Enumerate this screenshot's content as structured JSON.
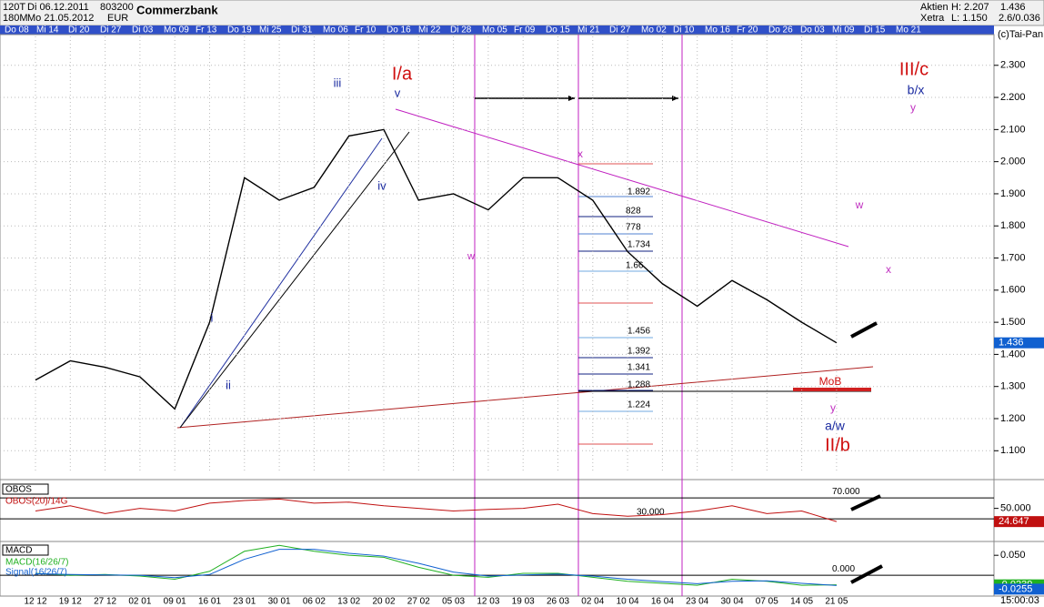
{
  "header": {
    "symbol_code": "120T",
    "start_date": "Di 06.12.2011",
    "code": "803200",
    "period": "180M",
    "end_date": "Mo 21.05.2012",
    "currency": "EUR",
    "name": "Commerzbank",
    "market_type": "Aktien",
    "high": "H: 2.207",
    "last": "1.436",
    "exchange": "Xetra",
    "low": "L: 1.150",
    "change": "2.6/0.036",
    "copyright": "(c)Tai-Pan",
    "time": "15:00:03"
  },
  "date_bar": [
    "Do 08",
    "Mi 14",
    "Di 20",
    "Di 27",
    "Di 03",
    "Mo 09",
    "Fr 13",
    "Do 19",
    "Mi 25",
    "Di 31",
    "Mo 06",
    "Fr 10",
    "Do 16",
    "Mi 22",
    "Di 28",
    "Mo 05",
    "Fr 09",
    "Do 15",
    "Mi 21",
    "Di 27",
    "Mo 02",
    "Di 10",
    "Mo 16",
    "Fr 20",
    "Do 26",
    "Do 03",
    "Mi 09",
    "Di 15",
    "Mo 21"
  ],
  "chart_data": [
    {
      "type": "line",
      "categories": [
        "12 12",
        "19 12",
        "27 12",
        "02 01",
        "09 01",
        "16 01",
        "23 01",
        "30 01",
        "06 02",
        "13 02",
        "20 02",
        "27 02",
        "05 03",
        "12 03",
        "19 03",
        "26 03",
        "02 04",
        "10 04",
        "16 04",
        "23 04",
        "30 04",
        "07 05",
        "14 05",
        "21 05"
      ],
      "values": [
        1.32,
        1.38,
        1.36,
        1.33,
        1.23,
        1.5,
        1.95,
        1.88,
        1.92,
        2.08,
        2.1,
        1.88,
        1.9,
        1.85,
        1.95,
        1.95,
        1.88,
        1.72,
        1.62,
        1.55,
        1.63,
        1.57,
        1.5,
        1.436
      ],
      "color": "#000000",
      "ylim": [
        1.03,
        2.39
      ],
      "yticks": [
        {
          "value": 1.1,
          "label": "1.100"
        },
        {
          "value": 1.2,
          "label": "1.200"
        },
        {
          "value": 1.3,
          "label": "1.300"
        },
        {
          "value": 1.4,
          "label": "1.400"
        },
        {
          "value": 1.5,
          "label": "1.500"
        },
        {
          "value": 1.6,
          "label": "1.600"
        },
        {
          "value": 1.7,
          "label": "1.700"
        },
        {
          "value": 1.8,
          "label": "1.800"
        },
        {
          "value": 1.9,
          "label": "1.900"
        },
        {
          "value": 2.0,
          "label": "2.000"
        },
        {
          "value": 2.1,
          "label": "2.100"
        },
        {
          "value": 2.2,
          "label": "2.200"
        },
        {
          "value": 2.3,
          "label": "2.300"
        }
      ],
      "grid": true,
      "annotations": [
        {
          "text": "I/a",
          "color": "#d01010"
        },
        {
          "text": "iii",
          "color": "#1a2aa0"
        },
        {
          "text": "v",
          "color": "#1a2aa0"
        },
        {
          "text": "iv",
          "color": "#1a2aa0"
        },
        {
          "text": "i",
          "color": "#1a2aa0"
        },
        {
          "text": "ii",
          "color": "#1a2aa0"
        },
        {
          "text": "w",
          "color": "#c030c0"
        },
        {
          "text": "x",
          "color": "#c030c0"
        },
        {
          "text": "III/c",
          "color": "#d01010"
        },
        {
          "text": "b/x",
          "color": "#1a2aa0"
        },
        {
          "text": "y",
          "color": "#c030c0"
        },
        {
          "text": "w",
          "color": "#c030c0"
        },
        {
          "text": "x",
          "color": "#c030c0"
        },
        {
          "text": "MoB",
          "color": "#d01010"
        },
        {
          "text": "y",
          "color": "#c030c0"
        },
        {
          "text": "a/w",
          "color": "#1a2aa0"
        },
        {
          "text": "II/b",
          "color": "#d01010"
        },
        {
          "text": "1.892",
          "color": "#000000"
        },
        {
          "text": "828",
          "color": "#000000"
        },
        {
          "text": "778",
          "color": "#000000"
        },
        {
          "text": "1.734",
          "color": "#000000"
        },
        {
          "text": "1.66",
          "color": "#000000"
        },
        {
          "text": "1.456",
          "color": "#000000"
        },
        {
          "text": "1.392",
          "color": "#000000"
        },
        {
          "text": "1.341",
          "color": "#000000"
        },
        {
          "text": "1.288",
          "color": "#000000"
        },
        {
          "text": "1.224",
          "color": "#000000"
        }
      ]
    },
    {
      "type": "line",
      "panel_label": "OBOS",
      "series": [
        {
          "name": "OBOS(20)/14G",
          "color": "#c01010",
          "values": [
            45,
            55,
            40,
            50,
            45,
            60,
            65,
            68,
            60,
            62,
            55,
            50,
            45,
            48,
            50,
            58,
            40,
            35,
            38,
            45,
            55,
            40,
            45,
            24.647
          ]
        }
      ],
      "ylim": [
        -17,
        100
      ],
      "yticks": [
        {
          "value": 50,
          "label": "50.000"
        }
      ],
      "levels": [
        {
          "value": 70,
          "label": "70.000"
        },
        {
          "value": 30,
          "label": "30.000"
        }
      ]
    },
    {
      "type": "line",
      "panel_label": "MACD",
      "series": [
        {
          "name": "MACD(16/26/7)",
          "color": "#20b020",
          "values": [
            0.005,
            0,
            0.002,
            -0.002,
            -0.01,
            0.01,
            0.06,
            0.075,
            0.06,
            0.05,
            0.045,
            0.02,
            0,
            -0.005,
            0.005,
            0.005,
            -0.005,
            -0.015,
            -0.02,
            -0.025,
            -0.01,
            -0.015,
            -0.025,
            -0.0239
          ]
        },
        {
          "name": "Signal(16/26/7)",
          "color": "#1060d0",
          "values": [
            0.004,
            0.002,
            0.001,
            0,
            -0.006,
            0.002,
            0.04,
            0.065,
            0.065,
            0.055,
            0.048,
            0.03,
            0.008,
            -0.002,
            0.001,
            0.003,
            -0.002,
            -0.01,
            -0.016,
            -0.021,
            -0.015,
            -0.014,
            -0.02,
            -0.0255
          ]
        }
      ],
      "ylim": [
        -0.052,
        0.08
      ],
      "yticks": [
        {
          "value": 0.05,
          "label": "0.050"
        }
      ],
      "levels": [
        {
          "value": 0,
          "label": "0.000"
        }
      ]
    }
  ]
}
